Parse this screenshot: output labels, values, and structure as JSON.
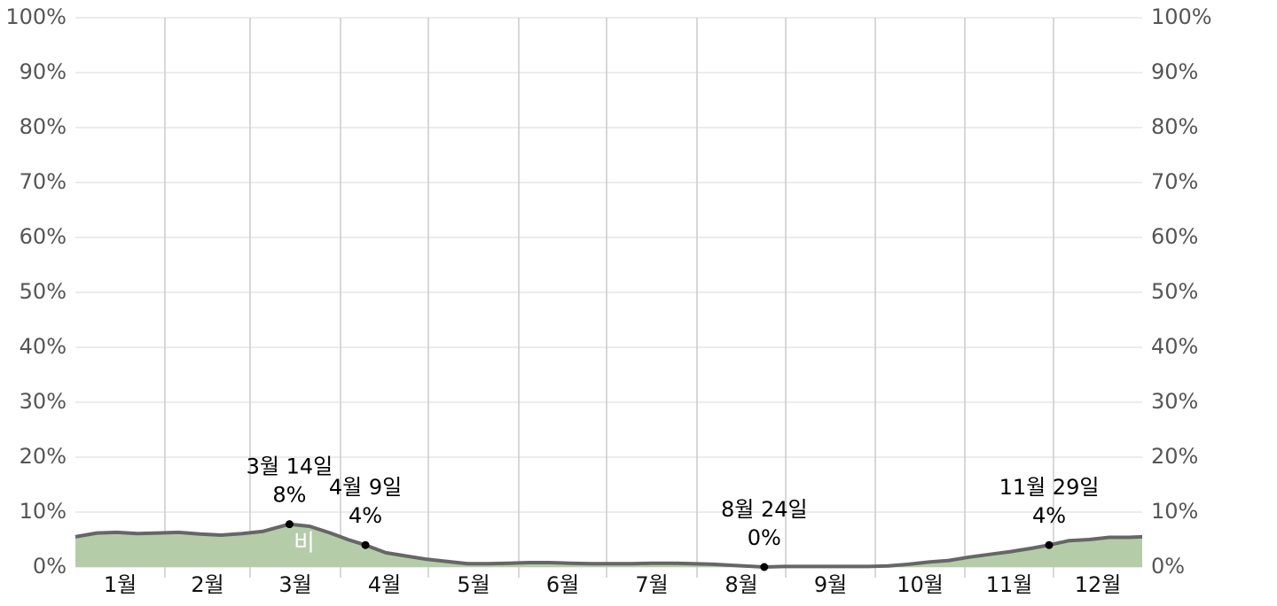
{
  "chart_data": {
    "type": "area",
    "series": [
      {
        "name": "비",
        "color": "#b5cca9",
        "line_color": "#666666",
        "x": [
          "1월 1일",
          "1월 8일",
          "1월 15일",
          "1월 22일",
          "1월 29일",
          "2월 5일",
          "2월 12일",
          "2월 19일",
          "2월 26일",
          "3월 5일",
          "3월 14일",
          "3월 21일",
          "3월 28일",
          "4월 3일",
          "4월 9일",
          "4월 16일",
          "4월 23일",
          "4월 30일",
          "5월 7일",
          "5월 14일",
          "5월 21일",
          "5월 28일",
          "6월 4일",
          "6월 11일",
          "6월 18일",
          "6월 25일",
          "7월 2일",
          "7월 9일",
          "7월 16일",
          "7월 23일",
          "7월 30일",
          "8월 6일",
          "8월 13일",
          "8월 24일",
          "8월 31일",
          "9월 7일",
          "9월 14일",
          "9월 21일",
          "9월 28일",
          "10월 5일",
          "10월 12일",
          "10월 19일",
          "10월 26일",
          "11월 2일",
          "11월 9일",
          "11월 16일",
          "11월 23일",
          "11월 29일",
          "12월 6일",
          "12월 13일",
          "12월 20일",
          "12월 27일",
          "12월 31일"
        ],
        "values": [
          5.5,
          6.2,
          6.3,
          6.1,
          6.2,
          6.3,
          6.0,
          5.8,
          6.1,
          6.5,
          7.8,
          7.4,
          6.2,
          5.0,
          4.0,
          2.6,
          2.0,
          1.4,
          1.0,
          0.6,
          0.6,
          0.7,
          0.8,
          0.8,
          0.7,
          0.6,
          0.6,
          0.6,
          0.7,
          0.7,
          0.6,
          0.5,
          0.3,
          0.0,
          0.1,
          0.1,
          0.1,
          0.1,
          0.1,
          0.2,
          0.5,
          0.9,
          1.2,
          1.8,
          2.3,
          2.8,
          3.4,
          4.0,
          4.8,
          5.0,
          5.4,
          5.4,
          5.5
        ]
      }
    ],
    "months": [
      "1월",
      "2월",
      "3월",
      "4월",
      "5월",
      "6월",
      "7월",
      "8월",
      "9월",
      "10월",
      "11월",
      "12월"
    ],
    "y_ticks": [
      "0%",
      "10%",
      "20%",
      "30%",
      "40%",
      "50%",
      "60%",
      "70%",
      "80%",
      "90%",
      "100%"
    ],
    "ylim": [
      0,
      100
    ],
    "grid": true,
    "annotations": [
      {
        "date": "3월 14일",
        "value_label": "8%",
        "value": 7.8
      },
      {
        "date": "4월 9일",
        "value_label": "4%",
        "value": 4.0
      },
      {
        "date": "8월 24일",
        "value_label": "0%",
        "value": 0.0
      },
      {
        "date": "11월 29일",
        "value_label": "4%",
        "value": 4.0
      }
    ],
    "series_label": "비"
  }
}
